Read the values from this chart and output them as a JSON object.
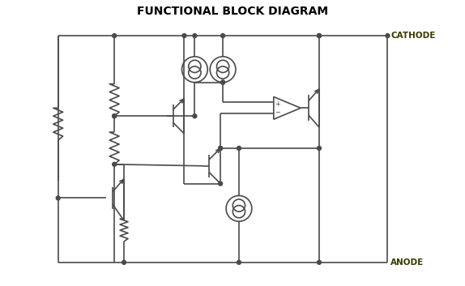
{
  "title": "FUNCTIONAL BLOCK DIAGRAM",
  "title_fontsize": 10,
  "title_fontweight": "bold",
  "cathode_label": "CATHODE",
  "anode_label": "ANODE",
  "bg_color": "#ffffff",
  "line_color": "#4a4a4a",
  "line_width": 1.2,
  "figsize": [
    5.74,
    3.53
  ],
  "dpi": 100
}
